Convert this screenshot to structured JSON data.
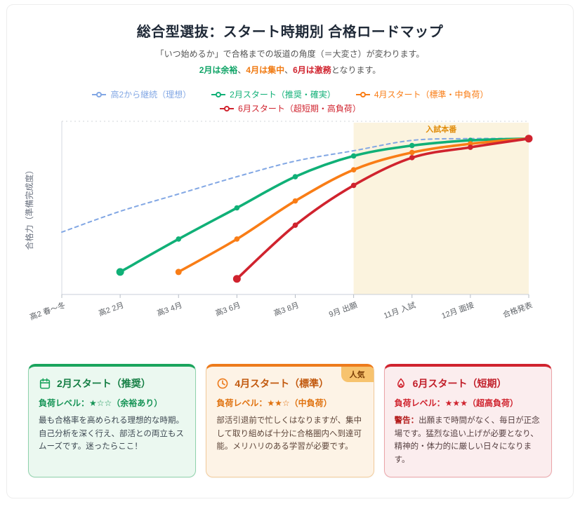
{
  "header": {
    "title": "総合型選抜：スタート時期別 合格ロードマップ",
    "subtitle1": "「いつ始めるか」で合格までの坂道の角度（＝大変さ）が変わります。",
    "subtitle2": {
      "feb": "2月は余裕",
      "sep1": "、",
      "apr": "4月は集中",
      "sep2": "、",
      "jun": "6月は激務",
      "tail": "となります。"
    }
  },
  "palette": {
    "ideal_blue": "#82A7E4",
    "feb_green": "#10B077",
    "apr_orange": "#F97D16",
    "jun_red": "#D0232E",
    "band_cream": "#FBF3DE",
    "band_label_amber": "#E18D0C"
  },
  "chart_data": {
    "type": "line",
    "ylabel": "合格力（準備完成度）",
    "xlabel": "",
    "ylim": [
      0,
      100
    ],
    "grid": "top dotted line only",
    "legend_position": "top",
    "categories": [
      "高2 春〜冬",
      "高2 2月",
      "高3 4月",
      "高3 6月",
      "高3 8月",
      "9月 出願",
      "11月 入試",
      "12月 面接",
      "合格発表"
    ],
    "band": {
      "label": "入試本番",
      "from": "9月 出願",
      "to": "合格発表",
      "color": "#FBF3DE",
      "label_color": "#E18D0C"
    },
    "series": [
      {
        "id": "keizoku",
        "name": "高2から継続（理想）",
        "color": "#82A7E4",
        "style": "dashed",
        "values": [
          36,
          48,
          58,
          68,
          77,
          83,
          89,
          90,
          90
        ]
      },
      {
        "id": "feb",
        "name": "2月スタート（推奨・確実）",
        "color": "#10B077",
        "style": "solid",
        "values": [
          null,
          13,
          32,
          50,
          68,
          80,
          86,
          89,
          90
        ]
      },
      {
        "id": "apr",
        "name": "4月スタート（標準・中負荷）",
        "color": "#F97D16",
        "style": "solid",
        "values": [
          null,
          null,
          13,
          32,
          54,
          72,
          82,
          87,
          90
        ]
      },
      {
        "id": "jun",
        "name": "6月スタート（超短期・高負荷）",
        "color": "#D0232E",
        "style": "solid",
        "values": [
          null,
          null,
          null,
          9,
          40,
          63,
          79,
          85,
          90
        ]
      }
    ]
  },
  "cards": [
    {
      "icon": "calendar-icon",
      "title": "2月スタート（推奨）",
      "badge": "",
      "load_label": "負荷レベル：",
      "stars": "★☆☆",
      "load_note": "（余裕あり）",
      "warning_prefix": "",
      "body": "最も合格率を高められる理想的な時期。自己分析を深く行え、部活との両立もスムーズです。迷ったらここ！"
    },
    {
      "icon": "clock-icon",
      "title": "4月スタート（標準）",
      "badge": "人気",
      "load_label": "負荷レベル：",
      "stars": "★★☆",
      "load_note": "（中負荷）",
      "warning_prefix": "",
      "body": "部活引退前で忙しくはなりますが、集中して取り組めば十分に合格圏内へ到達可能。メリハリのある学習が必要です。"
    },
    {
      "icon": "flame-icon",
      "title": "6月スタート（短期）",
      "badge": "",
      "load_label": "負荷レベル：",
      "stars": "★★★",
      "load_note": "（超高負荷）",
      "warning_prefix": "警告：",
      "body": "出願まで時間がなく、毎日が正念場です。猛烈な追い上げが必要となり、精神的・体力的に厳しい日々になります。"
    }
  ]
}
